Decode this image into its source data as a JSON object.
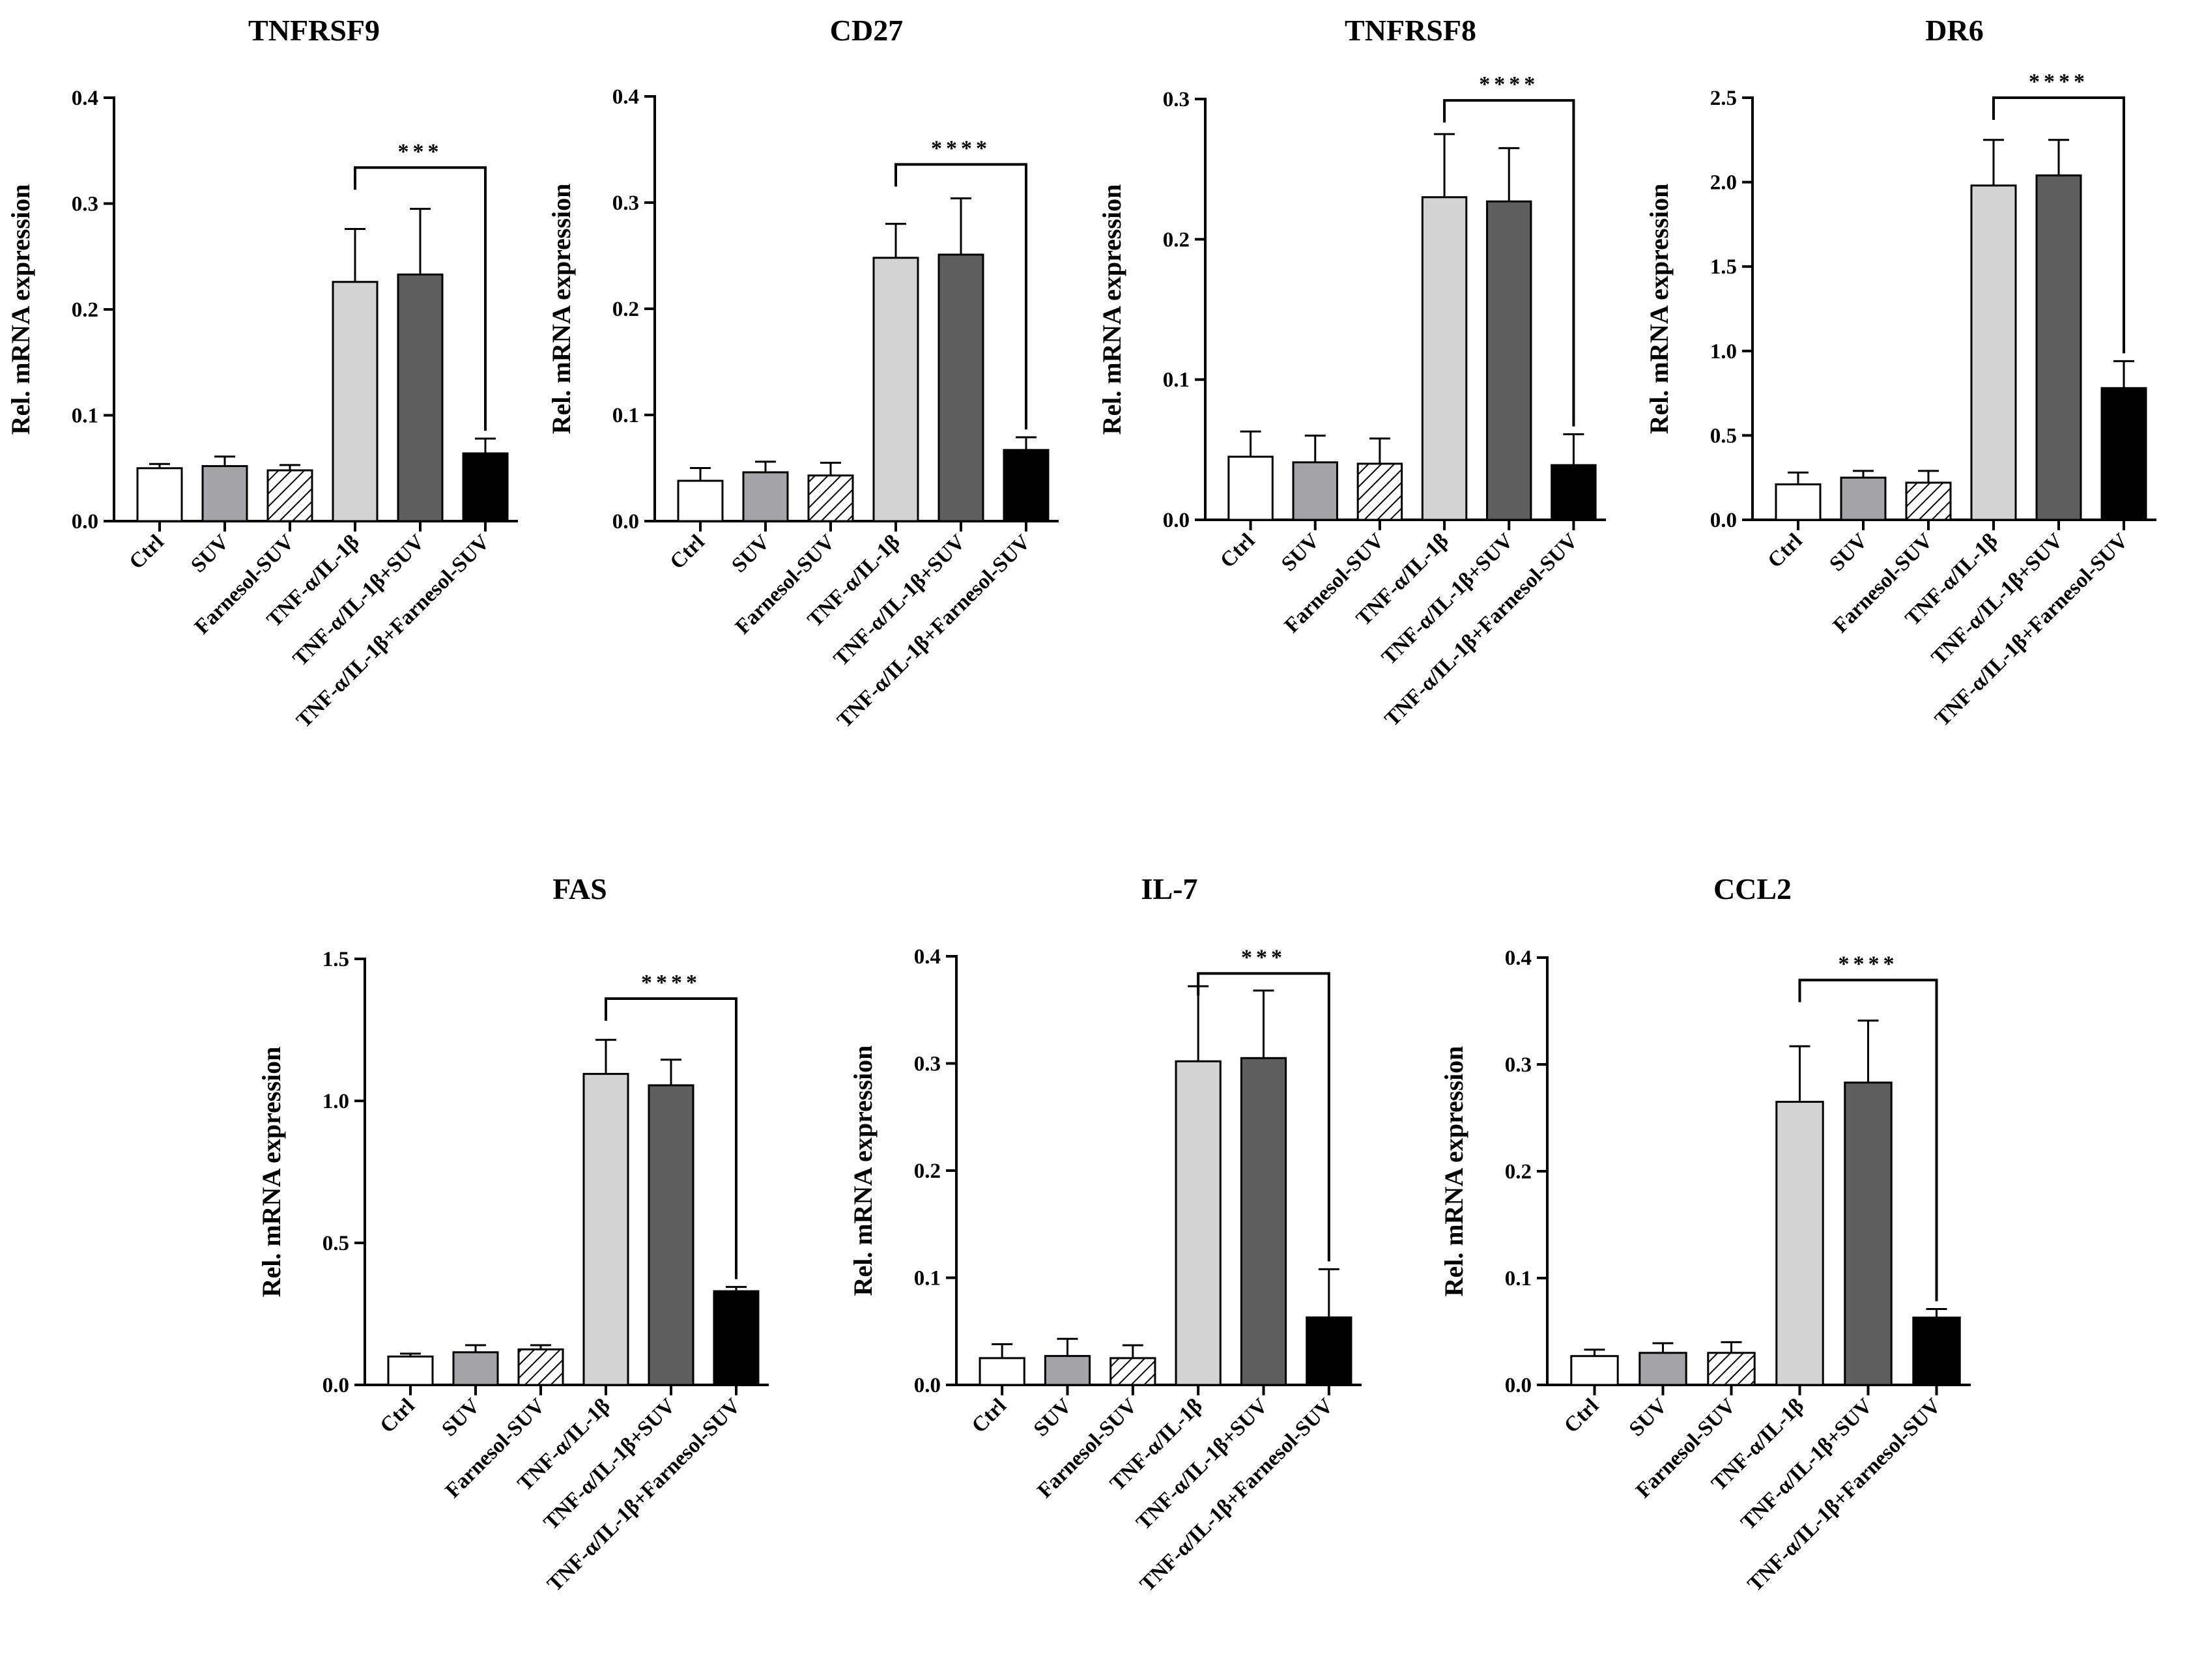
{
  "figure_colors": {
    "Ctrl": "#ffffff",
    "SUV": "#a3a3a8",
    "Farnesol-SUV": "hatch",
    "TNF-α/IL-1β": "#d3d3d3",
    "TNF-α/IL-1β+SUV": "#5e5e5e",
    "TNF-α/IL-1β+Farnesol-SUV": "#000000"
  },
  "chart_data": [
    {
      "type": "bar",
      "title": "TNFRSF9",
      "ylabel": "Rel. mRNA expression",
      "ylim": [
        0,
        0.4
      ],
      "yticks": [
        "0.0",
        "0.1",
        "0.2",
        "0.3",
        "0.4"
      ],
      "categories": [
        "Ctrl",
        "SUV",
        "Farnesol-SUV",
        "TNF-α/IL-1β",
        "TNF-α/IL-1β+SUV",
        "TNF-α/IL-1β+Farnesol-SUV"
      ],
      "values": [
        0.05,
        0.052,
        0.048,
        0.226,
        0.233,
        0.064
      ],
      "errors": [
        0.004,
        0.009,
        0.005,
        0.05,
        0.062,
        0.014
      ],
      "significance": {
        "from": 3,
        "to": 5,
        "label": "***",
        "level": 0.334
      }
    },
    {
      "type": "bar",
      "title": "CD27",
      "ylabel": "Rel. mRNA expression",
      "ylim": [
        0,
        0.4
      ],
      "yticks": [
        "0.0",
        "0.1",
        "0.2",
        "0.3",
        "0.4"
      ],
      "categories": [
        "Ctrl",
        "SUV",
        "Farnesol-SUV",
        "TNF-α/IL-1β",
        "TNF-α/IL-1β+SUV",
        "TNF-α/IL-1β+Farnesol-SUV"
      ],
      "values": [
        0.038,
        0.046,
        0.043,
        0.248,
        0.251,
        0.067
      ],
      "errors": [
        0.012,
        0.01,
        0.012,
        0.032,
        0.053,
        0.012
      ],
      "significance": {
        "from": 3,
        "to": 5,
        "label": "****",
        "level": 0.336
      }
    },
    {
      "type": "bar",
      "title": "TNFRSF8",
      "ylabel": "Rel. mRNA expression",
      "ylim": [
        0,
        0.3
      ],
      "yticks": [
        "0.0",
        "0.1",
        "0.2",
        "0.3"
      ],
      "categories": [
        "Ctrl",
        "SUV",
        "Farnesol-SUV",
        "TNF-α/IL-1β",
        "TNF-α/IL-1β+SUV",
        "TNF-α/IL-1β+Farnesol-SUV"
      ],
      "values": [
        0.045,
        0.041,
        0.04,
        0.23,
        0.227,
        0.039
      ],
      "errors": [
        0.018,
        0.019,
        0.018,
        0.045,
        0.038,
        0.022
      ],
      "significance": {
        "from": 3,
        "to": 5,
        "label": "****",
        "level": 0.299
      }
    },
    {
      "type": "bar",
      "title": "DR6",
      "ylabel": "Rel. mRNA expression",
      "ylim": [
        0,
        2.5
      ],
      "yticks": [
        "0.0",
        "0.5",
        "1.0",
        "1.5",
        "2.0",
        "2.5"
      ],
      "categories": [
        "Ctrl",
        "SUV",
        "Farnesol-SUV",
        "TNF-α/IL-1β",
        "TNF-α/IL-1β+SUV",
        "TNF-α/IL-1β+Farnesol-SUV"
      ],
      "values": [
        0.21,
        0.25,
        0.22,
        1.98,
        2.04,
        0.78
      ],
      "errors": [
        0.07,
        0.04,
        0.07,
        0.27,
        0.21,
        0.16
      ],
      "significance": {
        "from": 3,
        "to": 5,
        "label": "****",
        "level": 2.5
      }
    },
    {
      "type": "bar",
      "title": "FAS",
      "ylabel": "Rel. mRNA expression",
      "ylim": [
        0,
        1.5
      ],
      "yticks": [
        "0.0",
        "0.5",
        "1.0",
        "1.5"
      ],
      "categories": [
        "Ctrl",
        "SUV",
        "Farnesol-SUV",
        "TNF-α/IL-1β",
        "TNF-α/IL-1β+SUV",
        "TNF-α/IL-1β+Farnesol-SUV"
      ],
      "values": [
        0.1,
        0.115,
        0.125,
        1.095,
        1.055,
        0.33
      ],
      "errors": [
        0.01,
        0.025,
        0.015,
        0.12,
        0.09,
        0.015
      ],
      "significance": {
        "from": 3,
        "to": 5,
        "label": "****",
        "level": 1.36
      }
    },
    {
      "type": "bar",
      "title": "IL-7",
      "ylabel": "Rel. mRNA expression",
      "ylim": [
        0,
        0.4
      ],
      "yticks": [
        "0.0",
        "0.1",
        "0.2",
        "0.3",
        "0.4"
      ],
      "categories": [
        "Ctrl",
        "SUV",
        "Farnesol-SUV",
        "TNF-α/IL-1β",
        "TNF-α/IL-1β+SUV",
        "TNF-α/IL-1β+Farnesol-SUV"
      ],
      "values": [
        0.025,
        0.027,
        0.025,
        0.302,
        0.305,
        0.063
      ],
      "errors": [
        0.013,
        0.016,
        0.012,
        0.07,
        0.063,
        0.045
      ],
      "significance": {
        "from": 3,
        "to": 5,
        "label": "***",
        "level": 0.384
      }
    },
    {
      "type": "bar",
      "title": "CCL2",
      "ylabel": "Rel. mRNA expression",
      "ylim": [
        0,
        0.4
      ],
      "yticks": [
        "0.0",
        "0.1",
        "0.2",
        "0.3",
        "0.4"
      ],
      "categories": [
        "Ctrl",
        "SUV",
        "Farnesol-SUV",
        "TNF-α/IL-1β",
        "TNF-α/IL-1β+SUV",
        "TNF-α/IL-1β+Farnesol-SUV"
      ],
      "values": [
        0.027,
        0.03,
        0.03,
        0.265,
        0.283,
        0.063
      ],
      "errors": [
        0.006,
        0.009,
        0.01,
        0.052,
        0.058,
        0.008
      ],
      "significance": {
        "from": 3,
        "to": 5,
        "label": "****",
        "level": 0.379
      }
    }
  ]
}
